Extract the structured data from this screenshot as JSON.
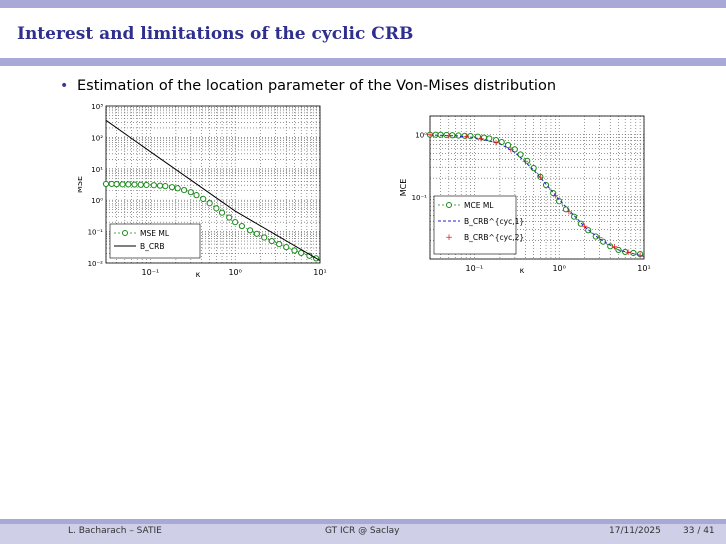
{
  "slide": {
    "title": "Interest and limitations of the cyclic CRB",
    "bullet": "Estimation of the location parameter of the Von-Mises distribution"
  },
  "footer": {
    "author": "L. Bacharach – SATIE",
    "event": "GT ICR @ Saclay",
    "date": "17/11/2025",
    "page": "33 / 41"
  },
  "colors": {
    "accent": "#2f2f8f",
    "bar": "#a9a9d8",
    "marker_green": "#1a8a1a",
    "red": "#e02020",
    "blue": "#2020c8"
  },
  "chart_data": [
    {
      "type": "line",
      "ylabel": "MSE",
      "xlabel": "κ",
      "xscale": "log",
      "yscale": "log",
      "xlim": [
        0.03,
        10
      ],
      "ylim": [
        0.01,
        1000
      ],
      "xticks": [
        "10⁻¹",
        "10⁰",
        "10¹"
      ],
      "yticks": [
        "10⁻²",
        "10⁻¹",
        "10⁰",
        "10¹",
        "10²",
        "10³"
      ],
      "grid": true,
      "legend": "bottom-left",
      "series": [
        {
          "name": "MSE ML",
          "style": "green-circles-dashed",
          "x": [
            0.03,
            0.035,
            0.04,
            0.047,
            0.055,
            0.065,
            0.077,
            0.09,
            0.11,
            0.13,
            0.15,
            0.18,
            0.21,
            0.25,
            0.3,
            0.35,
            0.42,
            0.5,
            0.6,
            0.7,
            0.85,
            1.0,
            1.2,
            1.5,
            1.8,
            2.2,
            2.7,
            3.3,
            4.0,
            5.0,
            6.0,
            7.5,
            9.0
          ],
          "y": [
            3.3,
            3.3,
            3.25,
            3.2,
            3.2,
            3.15,
            3.1,
            3.05,
            3.0,
            2.9,
            2.8,
            2.6,
            2.4,
            2.1,
            1.8,
            1.45,
            1.1,
            0.8,
            0.55,
            0.4,
            0.28,
            0.2,
            0.15,
            0.11,
            0.085,
            0.065,
            0.05,
            0.04,
            0.032,
            0.025,
            0.021,
            0.017,
            0.014
          ]
        },
        {
          "name": "B_CRB",
          "style": "black-solid",
          "x": [
            0.03,
            0.1,
            1.0,
            10.0
          ],
          "y": [
            350,
            35,
            0.45,
            0.012
          ]
        }
      ]
    },
    {
      "type": "line",
      "ylabel": "MCE",
      "xlabel": "κ",
      "xscale": "log",
      "yscale": "log",
      "xlim": [
        0.03,
        10
      ],
      "ylim": [
        0.01,
        2
      ],
      "xticks": [
        "10⁻¹",
        "10⁰",
        "10¹"
      ],
      "yticks": [
        "10⁻¹",
        "10⁰"
      ],
      "grid": true,
      "legend": "bottom-left",
      "series": [
        {
          "name": "MCE ML",
          "style": "green-circles-dashed",
          "x": [
            0.03,
            0.035,
            0.04,
            0.047,
            0.055,
            0.065,
            0.077,
            0.09,
            0.11,
            0.13,
            0.15,
            0.18,
            0.21,
            0.25,
            0.3,
            0.35,
            0.42,
            0.5,
            0.6,
            0.7,
            0.85,
            1.0,
            1.2,
            1.5,
            1.8,
            2.2,
            2.7,
            3.3,
            4.0,
            5.0,
            6.0,
            7.5,
            9.0
          ],
          "y": [
            1.0,
            1.0,
            1.0,
            0.99,
            0.98,
            0.97,
            0.96,
            0.95,
            0.93,
            0.9,
            0.87,
            0.82,
            0.76,
            0.68,
            0.58,
            0.48,
            0.38,
            0.29,
            0.21,
            0.155,
            0.115,
            0.085,
            0.063,
            0.048,
            0.037,
            0.029,
            0.023,
            0.019,
            0.016,
            0.014,
            0.013,
            0.0125,
            0.012
          ]
        },
        {
          "name": "B_CRB^{cyc,1}",
          "style": "blue-dashed",
          "x": [
            0.03,
            0.06,
            0.1,
            0.2,
            0.3,
            0.5,
            0.7,
            1.0,
            1.5,
            2.0,
            3.0,
            5.0,
            10.0
          ],
          "y": [
            0.99,
            0.96,
            0.9,
            0.72,
            0.52,
            0.27,
            0.16,
            0.09,
            0.05,
            0.033,
            0.021,
            0.014,
            0.011
          ]
        },
        {
          "name": "B_CRB^{cyc,2}",
          "style": "red-plus",
          "x": [
            0.03,
            0.05,
            0.08,
            0.12,
            0.18,
            0.27,
            0.4,
            0.6,
            0.9,
            1.3,
            2.0,
            3.0,
            4.5,
            6.5,
            9.0
          ],
          "y": [
            1.0,
            0.98,
            0.94,
            0.87,
            0.75,
            0.58,
            0.38,
            0.21,
            0.105,
            0.058,
            0.034,
            0.022,
            0.016,
            0.013,
            0.0115
          ]
        }
      ]
    }
  ]
}
